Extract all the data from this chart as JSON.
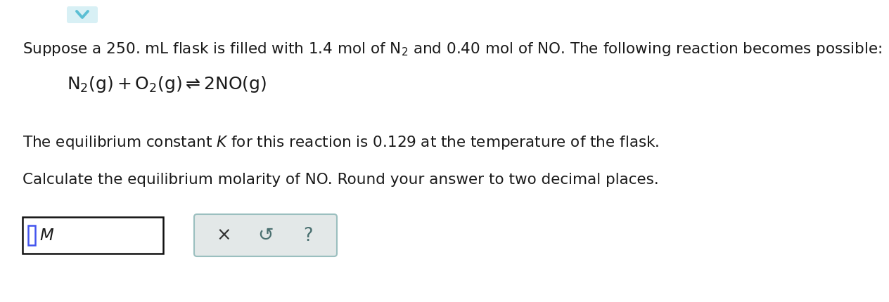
{
  "background_color": "#ffffff",
  "text_color": "#1a1a1a",
  "line1": "Suppose a 250. mL flask is filled with 1.4 mol of $\\mathrm{N_2}$ and 0.40 mol of NO. The following reaction becomes possible:",
  "reaction": "$\\mathrm{N_2(g)+O_2(g)\\rightleftharpoons 2NO(g)}$",
  "line3": "The equilibrium constant $K$ for this reaction is 0.129 at the temperature of the flask.",
  "line4": "Calculate the equilibrium molarity of NO. Round your answer to two decimal places.",
  "font_size_main": 15.5,
  "font_size_reaction": 18,
  "chevron_color": "#5bbfd4",
  "chevron_bg": "#d8f0f5",
  "input_border": "#111111",
  "cursor_color": "#4455ee",
  "button_bg": "#e3e8e8",
  "button_border": "#9bbfbf",
  "button_text_color": "#4a7070",
  "x_color": "#333333"
}
